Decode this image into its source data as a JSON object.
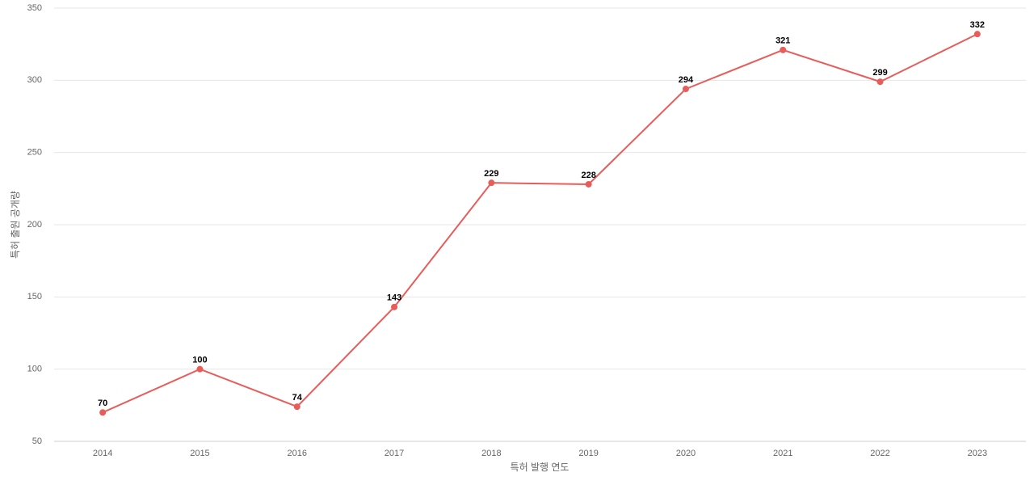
{
  "chart_data": {
    "type": "line",
    "x_label": "특허 발행 연도",
    "y_label": "특허 출원 공개량",
    "categories": [
      "2014",
      "2015",
      "2016",
      "2017",
      "2018",
      "2019",
      "2020",
      "2021",
      "2022",
      "2023"
    ],
    "series": [
      {
        "name": "특허 출원 공개량",
        "color": "#e85c5a",
        "values": [
          70,
          100,
          74,
          143,
          229,
          228,
          294,
          321,
          299,
          332
        ]
      }
    ],
    "ylim": [
      50,
      350
    ],
    "yticks": [
      50,
      100,
      150,
      200,
      250,
      300,
      350
    ],
    "grid": true
  }
}
